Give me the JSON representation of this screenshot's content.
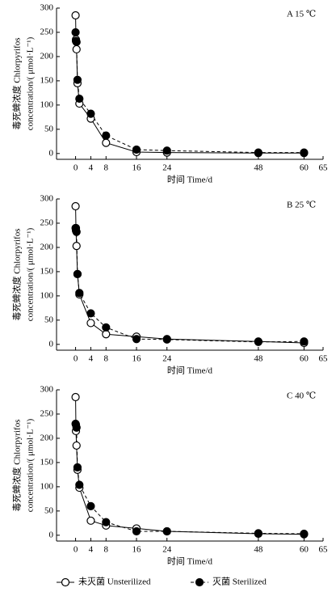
{
  "chart_data": [
    {
      "type": "line",
      "panel_label": "A 15 ℃",
      "y_label": [
        "毒死蜱浓度 Chlorpyrifos",
        "concentration/( μmol·L⁻¹)"
      ],
      "x_label": "时间 Time/d",
      "xlim": [
        -5,
        65
      ],
      "xticks": [
        0,
        4,
        8,
        16,
        24,
        48,
        60,
        65
      ],
      "ylim": [
        -12,
        300
      ],
      "yticks": [
        0,
        50,
        100,
        150,
        200,
        250,
        300
      ],
      "series": [
        {
          "name": "未灭菌 Unsterilized",
          "color": "#000000",
          "fill": "#ffffff",
          "dashed": false,
          "x": [
            0,
            0.1,
            0.25,
            0.5,
            1,
            4,
            8,
            16,
            24,
            48,
            60
          ],
          "values": [
            285,
            235,
            215,
            145,
            103,
            72,
            22,
            3,
            2,
            1,
            1
          ]
        },
        {
          "name": "灭菌 Sterilized",
          "color": "#000000",
          "fill": "#000000",
          "dashed": true,
          "x": [
            0,
            0.1,
            0.25,
            0.5,
            1,
            4,
            8,
            16,
            24,
            48,
            60
          ],
          "values": [
            250,
            232,
            230,
            152,
            113,
            82,
            37,
            8,
            6,
            2,
            2
          ]
        }
      ]
    },
    {
      "type": "line",
      "panel_label": "B 25 ℃",
      "y_label": [
        "毒死蜱浓度 Chlorpyrifos",
        "concentration/( μmol·L⁻¹)"
      ],
      "x_label": "时间 Time/d",
      "xlim": [
        -5,
        65
      ],
      "xticks": [
        0,
        4,
        8,
        16,
        24,
        48,
        60,
        65
      ],
      "ylim": [
        -12,
        300
      ],
      "yticks": [
        0,
        50,
        100,
        150,
        200,
        250,
        300
      ],
      "series": [
        {
          "color": "#000000",
          "fill": "#ffffff",
          "dashed": false,
          "x": [
            0,
            0.1,
            0.25,
            0.5,
            1,
            4,
            8,
            16,
            24,
            48,
            60
          ],
          "values": [
            285,
            240,
            203,
            145,
            103,
            44,
            21,
            16,
            11,
            6,
            3
          ]
        },
        {
          "color": "#000000",
          "fill": "#000000",
          "dashed": true,
          "x": [
            0,
            0.1,
            0.25,
            0.5,
            1,
            4,
            8,
            16,
            24,
            48,
            60
          ],
          "values": [
            240,
            235,
            232,
            145,
            106,
            64,
            35,
            11,
            10,
            5,
            6
          ]
        }
      ]
    },
    {
      "type": "line",
      "panel_label": "C 40 ℃",
      "y_label": [
        "毒死蜱浓度 Chlorpyrifos",
        "concentration/( μmol·L⁻¹)"
      ],
      "x_label": "时间 Time/d",
      "xlim": [
        -5,
        65
      ],
      "xticks": [
        0,
        4,
        8,
        16,
        24,
        48,
        60,
        65
      ],
      "ylim": [
        -12,
        300
      ],
      "yticks": [
        0,
        50,
        100,
        150,
        200,
        250,
        300
      ],
      "series": [
        {
          "color": "#000000",
          "fill": "#ffffff",
          "dashed": false,
          "x": [
            0,
            0.1,
            0.25,
            0.5,
            1,
            4,
            8,
            16,
            24,
            48,
            60
          ],
          "values": [
            285,
            215,
            185,
            135,
            98,
            30,
            20,
            14,
            8,
            3,
            2
          ]
        },
        {
          "color": "#000000",
          "fill": "#000000",
          "dashed": true,
          "x": [
            0,
            0.1,
            0.25,
            0.5,
            1,
            4,
            8,
            16,
            24,
            48,
            60
          ],
          "values": [
            230,
            228,
            222,
            140,
            104,
            60,
            27,
            8,
            8,
            4,
            3
          ]
        }
      ]
    }
  ]
}
